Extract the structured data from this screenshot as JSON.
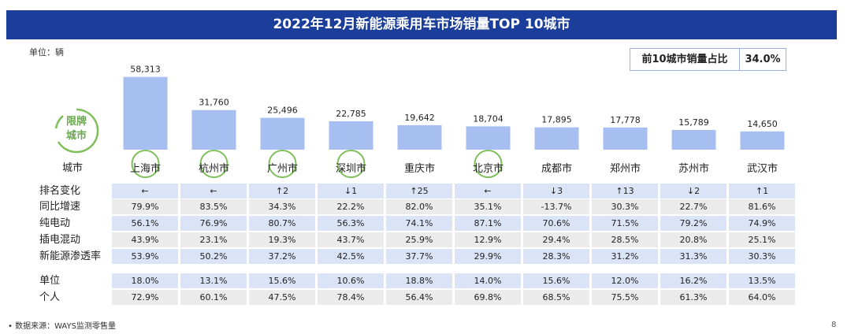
{
  "header": {
    "title": "2022年12月新能源乘用车市场销量TOP 10城市"
  },
  "unit_label": "单位：辆",
  "share_box": {
    "label": "前10城市销量占比",
    "value": "34.0%"
  },
  "badge": {
    "line1": "限牌",
    "line2": "城市"
  },
  "table": {
    "city_header": "城市",
    "row_labels": {
      "rank": "排名变化",
      "yoy": "同比增速",
      "bev": "纯电动",
      "phev": "插电混动",
      "penetration": "新能源渗透率",
      "unit": "单位",
      "personal": "个人"
    }
  },
  "chart_data": {
    "type": "bar",
    "categories": [
      "上海市",
      "杭州市",
      "广州市",
      "深圳市",
      "重庆市",
      "北京市",
      "成都市",
      "郑州市",
      "苏州市",
      "武汉市"
    ],
    "values": [
      58313,
      31760,
      25496,
      22785,
      19642,
      18704,
      17895,
      17778,
      15789,
      14650
    ],
    "value_labels": [
      "58,313",
      "31,760",
      "25,496",
      "22,785",
      "19,642",
      "18,704",
      "17,895",
      "17,778",
      "15,789",
      "14,650"
    ],
    "restricted_cities": [
      "上海市",
      "杭州市",
      "广州市",
      "深圳市",
      "北京市"
    ],
    "ylim": [
      0,
      60000
    ],
    "grid": false,
    "colors": {
      "bar": "#a7bff0",
      "circle": "#7fbf5a",
      "header": "#1b3e9a"
    }
  },
  "rows": {
    "rank": [
      "←",
      "←",
      "↑2",
      "↓1",
      "↑25",
      "←",
      "↓3",
      "↑13",
      "↓2",
      "↑1"
    ],
    "yoy": [
      "79.9%",
      "83.5%",
      "34.3%",
      "22.2%",
      "82.0%",
      "35.1%",
      "-13.7%",
      "30.3%",
      "22.7%",
      "81.6%"
    ],
    "bev": [
      "56.1%",
      "76.9%",
      "80.7%",
      "56.3%",
      "74.1%",
      "87.1%",
      "70.6%",
      "71.5%",
      "79.2%",
      "74.9%"
    ],
    "phev": [
      "43.9%",
      "23.1%",
      "19.3%",
      "43.7%",
      "25.9%",
      "12.9%",
      "29.4%",
      "28.5%",
      "20.8%",
      "25.1%"
    ],
    "penetration": [
      "53.9%",
      "50.2%",
      "37.2%",
      "42.5%",
      "37.7%",
      "29.9%",
      "28.3%",
      "31.2%",
      "31.3%",
      "30.3%"
    ],
    "unit": [
      "18.0%",
      "13.1%",
      "15.6%",
      "10.6%",
      "18.8%",
      "14.0%",
      "15.6%",
      "12.0%",
      "16.2%",
      "13.5%"
    ],
    "personal": [
      "72.9%",
      "60.1%",
      "47.5%",
      "78.4%",
      "56.4%",
      "69.8%",
      "68.5%",
      "75.5%",
      "61.3%",
      "64.0%"
    ]
  },
  "footer": {
    "source": "•    数据来源：WAYS监测零售量",
    "page": "8"
  }
}
